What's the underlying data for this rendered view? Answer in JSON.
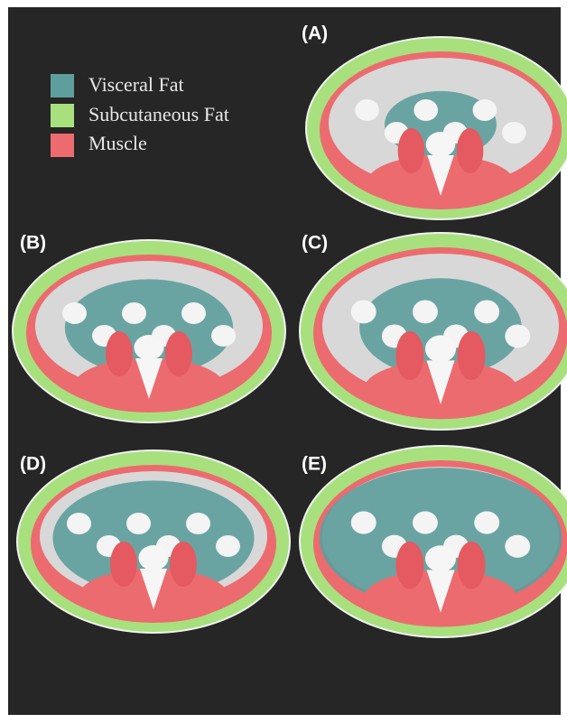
{
  "legend": [
    {
      "label": "Visceral Fat"
    },
    {
      "label": "Subcutaneous Fat"
    },
    {
      "label": "Muscle"
    }
  ],
  "panels": [
    {
      "label": "(A)"
    },
    {
      "label": "(B)"
    },
    {
      "label": "(C)"
    },
    {
      "label": "(D)"
    },
    {
      "label": "(E)"
    }
  ]
}
